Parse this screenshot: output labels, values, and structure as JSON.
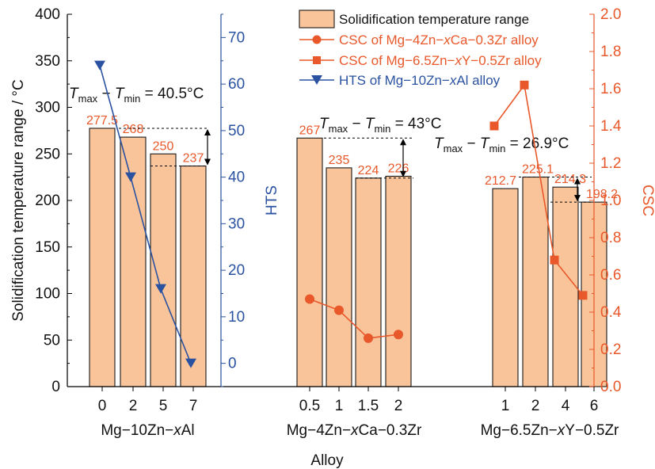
{
  "chart_data": {
    "type": "bar",
    "colors": {
      "bar_fill": "#f9c49a",
      "bar_stroke": "#1a1a1a",
      "bar_label": "#e8582a",
      "hts": "#2a52a0",
      "csc": "#e8582a",
      "text": "#111111"
    },
    "xlabel": "Alloy",
    "ylabel": "Solidification temperature range / °C",
    "y2label": "HTS",
    "y3label": "CSC",
    "ylim": [
      0,
      400
    ],
    "y_ticks": [
      "0",
      "50",
      "100",
      "150",
      "200",
      "250",
      "300",
      "350",
      "400"
    ],
    "y2lim": [
      -5,
      75
    ],
    "y2_ticks": [
      "0",
      "10",
      "20",
      "30",
      "40",
      "50",
      "60",
      "70"
    ],
    "y3lim": [
      0,
      2.0
    ],
    "y3_ticks": [
      "0.0",
      "0.2",
      "0.4",
      "0.6",
      "0.8",
      "1.0",
      "1.2",
      "1.4",
      "1.6",
      "1.8",
      "2.0"
    ],
    "groups": [
      {
        "name": "Mg−10Zn−xAl",
        "name_prefix": "Mg−10Zn−",
        "name_var": "x",
        "name_suffix": "Al",
        "categories": [
          "0",
          "2",
          "5",
          "7"
        ],
        "values": [
          277.5,
          268,
          250,
          237
        ],
        "value_labels": [
          "277.5",
          "268",
          "250",
          "237"
        ],
        "range_text": " = 40.5°C",
        "range_min": 237,
        "range_max": 277.5
      },
      {
        "name": "Mg−4Zn−xCa−0.3Zr",
        "name_prefix": "Mg−4Zn−",
        "name_var": "x",
        "name_suffix": "Ca−0.3Zr",
        "categories": [
          "0.5",
          "1",
          "1.5",
          "2"
        ],
        "values": [
          267,
          235,
          224,
          226
        ],
        "value_labels": [
          "267",
          "235",
          "224",
          "226"
        ],
        "range_text": " = 43°C",
        "range_min": 224,
        "range_max": 267
      },
      {
        "name": "Mg−6.5Zn−xY−0.5Zr",
        "name_prefix": "Mg−6.5Zn−",
        "name_var": "x",
        "name_suffix": "Y−0.5Zr",
        "categories": [
          "1",
          "2",
          "4",
          "6"
        ],
        "values": [
          212.7,
          225.1,
          214.3,
          198.2
        ],
        "value_labels": [
          "212.7",
          "225.1",
          "214.3",
          "198.2"
        ],
        "range_text": " = 26.9°C",
        "range_min": 198.2,
        "range_max": 225.1
      }
    ],
    "series": [
      {
        "name": "Solidification temperature range",
        "kind": "bar"
      },
      {
        "name": "HTS of Mg−10Zn−xAl alloy",
        "name_prefix": "HTS of Mg−10Zn−",
        "name_var": "x",
        "name_suffix": "Al alloy",
        "kind": "line",
        "axis": "HTS",
        "group": 0,
        "marker": "triangle-down",
        "values": [
          64,
          40,
          16,
          0
        ]
      },
      {
        "name": "CSC of Mg−4Zn−xCa−0.3Zr alloy",
        "name_prefix": "CSC of Mg−4Zn−",
        "name_var": "x",
        "name_suffix": "Ca−0.3Zr alloy",
        "kind": "line",
        "axis": "CSC",
        "group": 1,
        "marker": "circle",
        "values": [
          0.47,
          0.41,
          0.26,
          0.28
        ]
      },
      {
        "name": "CSC of Mg−6.5Zn−xY−0.5Zr alloy",
        "name_prefix": "CSC of Mg−6.5Zn−",
        "name_var": "x",
        "name_suffix": "Y−0.5Zr alloy",
        "kind": "line",
        "axis": "CSC",
        "group": 2,
        "marker": "square",
        "values": [
          1.4,
          1.62,
          0.68,
          0.49
        ]
      }
    ],
    "range_label": {
      "T": "T",
      "max": "max",
      "min": "min",
      "minus": " − "
    },
    "legend_position": "top-right",
    "grid": false
  }
}
